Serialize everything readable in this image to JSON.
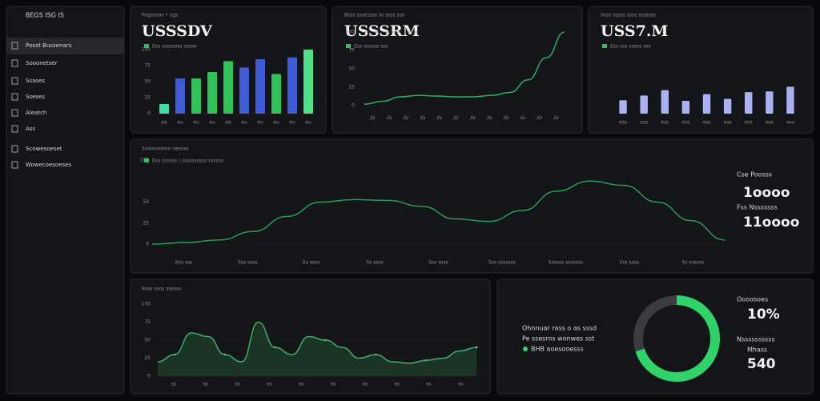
{
  "sidebar": {
    "logo": "BEGS ISG IS",
    "items": [
      "Poost Bussenars",
      "Sooonetser",
      "Ssases",
      "Sseses",
      "Aleatch",
      "Ass",
      "Scowesoeset",
      "Wowecoesoeses"
    ]
  },
  "cards": [
    {
      "title": "Pogsvsas • cgs",
      "value": "USSSDV",
      "legend": "Ess sssssess sssse"
    },
    {
      "title": "Bsss sssessss ss ssss sss",
      "value": "USSSRM",
      "legend": "Ess ssssse sss"
    },
    {
      "title": "Ssss sssss ssss sssssss",
      "value": "USS7.M",
      "legend": "Ess sss ssess sss"
    },
    {
      "title": "Soooosoeoo oesoss",
      "legend": "Bss ssssss | ssssssssss ssssss",
      "stats": [
        {
          "label": "Cse Poosss",
          "value": "1oooo"
        },
        {
          "label": "Fss Nsssssss",
          "value": "11oooo"
        }
      ]
    },
    {
      "title": "Rsss ssos ssssss"
    },
    {
      "title": "Ohnnuar rass o as sssd",
      "subtitle": "Pe ssesros wonwes sst",
      "legend": "BHB aoesooesss",
      "stats": [
        {
          "label": "Oooosoes",
          "value": "10%"
        },
        {
          "label": "Nssssssssss",
          "sublabel": "Mhass",
          "value": "540"
        }
      ]
    }
  ],
  "charts": [
    {
      "type": "bar",
      "values": [
        15,
        55,
        55,
        65,
        82,
        72,
        85,
        62,
        88,
        100
      ],
      "colors": [
        "#3fe0a8",
        "#3f5bd6",
        "#2ec45a",
        "#2ec45a",
        "#2ec45a",
        "#3f5bd6",
        "#3f5bd6",
        "#2ec45a",
        "#3f5bd6",
        "#4fe08a"
      ],
      "categories": [
        "ea",
        "eu",
        "eu",
        "eu",
        "ea",
        "eu",
        "eu",
        "eu",
        "eu",
        "eu"
      ],
      "ylim": [
        0,
        100
      ],
      "yticks": [
        0,
        25,
        50,
        75,
        100
      ]
    },
    {
      "type": "line",
      "color": "#2fae5f",
      "values": [
        2,
        6,
        12,
        14,
        13,
        12,
        12,
        14,
        18,
        35,
        65,
        100
      ],
      "categories": [
        "Ss",
        "Ss",
        "Ss",
        "Ss",
        "Ss",
        "Ss",
        "Ss",
        "Ss",
        "Ss",
        "Ss",
        "Ss",
        "Ss"
      ],
      "ylim": [
        0,
        100
      ],
      "yticks": [
        0,
        25,
        50,
        75,
        100
      ]
    },
    {
      "type": "bar",
      "values": [
        20,
        27,
        35,
        19,
        29,
        22,
        32,
        33,
        40
      ],
      "colors": [
        "#aab2f2",
        "#aab2f2",
        "#aab2f2",
        "#aab2f2",
        "#aab2f2",
        "#aab2f2",
        "#aab2f2",
        "#aab2f2",
        "#aab2f2"
      ],
      "categories": [
        "ess",
        "ess",
        "ess",
        "ess",
        "ess",
        "ess",
        "ess",
        "ess",
        "ess"
      ],
      "ylim": [
        0,
        50
      ]
    },
    {
      "type": "line",
      "color": "#2a9d55",
      "values": [
        0,
        2,
        5,
        15,
        33,
        50,
        53,
        52,
        45,
        30,
        27,
        40,
        63,
        75,
        70,
        50,
        28,
        5
      ],
      "categories": [
        "Bss sss",
        "Sss ssss",
        "Ss ssss",
        "Ss ssss",
        "Sss ssss",
        "Sss sssssss",
        "Ssssss sssssss",
        "Sss ssss",
        "Ss ssssss"
      ],
      "ylim": [
        0,
        100
      ],
      "yticks": [
        0,
        25,
        50,
        100
      ]
    },
    {
      "type": "area",
      "color": "#3fae6a",
      "values": [
        20,
        30,
        60,
        55,
        30,
        20,
        75,
        40,
        30,
        55,
        50,
        40,
        25,
        30,
        20,
        18,
        22,
        25,
        35,
        40
      ],
      "categories": [
        "ss",
        "ss",
        "ss",
        "ss",
        "ss",
        "ss",
        "ss",
        "ss",
        "ss",
        "ss"
      ],
      "ylim": [
        0,
        100
      ],
      "yticks": [
        0,
        25,
        50,
        75,
        100
      ]
    },
    {
      "type": "donut",
      "color": "#2fd36a",
      "value": 70,
      "max": 100
    }
  ]
}
